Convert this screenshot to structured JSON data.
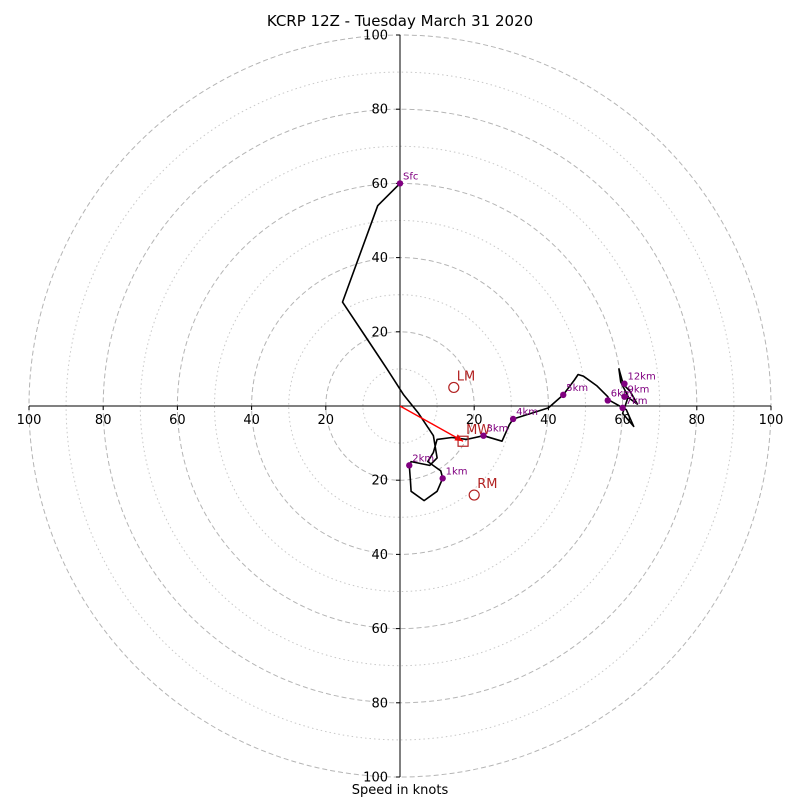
{
  "chart_data": {
    "type": "hodograph",
    "title": "KCRP 12Z - Tuesday March 31 2020",
    "xlabel": "Speed in knots",
    "range": [
      -100,
      100
    ],
    "ring_major": [
      20,
      40,
      60,
      80,
      100
    ],
    "ring_minor": [
      10,
      30,
      50,
      70,
      90
    ],
    "x_tick_labels": [
      {
        "v": -100,
        "label": "100"
      },
      {
        "v": -80,
        "label": "80"
      },
      {
        "v": -60,
        "label": "60"
      },
      {
        "v": -40,
        "label": "40"
      },
      {
        "v": -20,
        "label": "20"
      },
      {
        "v": 20,
        "label": "20"
      },
      {
        "v": 40,
        "label": "40"
      },
      {
        "v": 60,
        "label": "60"
      },
      {
        "v": 80,
        "label": "80"
      },
      {
        "v": 100,
        "label": "100"
      }
    ],
    "y_tick_labels": [
      {
        "v": 100,
        "label": "100"
      },
      {
        "v": 80,
        "label": "80"
      },
      {
        "v": 60,
        "label": "60"
      },
      {
        "v": 40,
        "label": "40"
      },
      {
        "v": 20,
        "label": "20"
      },
      {
        "v": -20,
        "label": "20"
      },
      {
        "v": -40,
        "label": "40"
      },
      {
        "v": -60,
        "label": "60"
      },
      {
        "v": -80,
        "label": "80"
      },
      {
        "v": -100,
        "label": "100"
      }
    ],
    "line_color": "#000000",
    "hodograph_line": [
      [
        0,
        60
      ],
      [
        -6,
        54
      ],
      [
        -15.5,
        28
      ],
      [
        -9.5,
        19
      ],
      [
        -3.5,
        10
      ],
      [
        1,
        3
      ],
      [
        5,
        -2
      ],
      [
        9,
        -8
      ],
      [
        10,
        -14
      ],
      [
        8,
        -16
      ],
      [
        3,
        -15
      ],
      [
        2.5,
        -16
      ],
      [
        2.8,
        -20
      ],
      [
        3,
        -23
      ],
      [
        6.5,
        -25.5
      ],
      [
        10,
        -23
      ],
      [
        11.5,
        -19.5
      ],
      [
        11,
        -17.5
      ],
      [
        7.5,
        -15
      ],
      [
        9,
        -12.5
      ],
      [
        10,
        -9
      ],
      [
        14,
        -8.5
      ],
      [
        18,
        -9
      ],
      [
        22.5,
        -8
      ],
      [
        27.5,
        -9.5
      ],
      [
        29.5,
        -5
      ],
      [
        30.5,
        -3.5
      ],
      [
        40,
        -0.5
      ],
      [
        44,
        3
      ],
      [
        47,
        7
      ],
      [
        48,
        8.5
      ],
      [
        49.5,
        8
      ],
      [
        53,
        5.5
      ],
      [
        56,
        2.5
      ],
      [
        56.5,
        1.5
      ],
      [
        61,
        -1
      ],
      [
        63,
        -5.5
      ],
      [
        60,
        -2
      ],
      [
        60.5,
        -0.5
      ],
      [
        61.5,
        2.5
      ],
      [
        59.5,
        6.5
      ],
      [
        59,
        10
      ],
      [
        60,
        6.5
      ],
      [
        60.5,
        5.5
      ],
      [
        62,
        4
      ],
      [
        64,
        0.5
      ],
      [
        60.5,
        3
      ]
    ],
    "height_color": "#800080",
    "height_points": [
      {
        "label": "Sfc",
        "u": 0,
        "v": 60
      },
      {
        "label": "1km",
        "u": 11.5,
        "v": -19.5
      },
      {
        "label": "2km",
        "u": 2.5,
        "v": -16
      },
      {
        "label": "3km",
        "u": 22.5,
        "v": -8
      },
      {
        "label": "4km",
        "u": 30.5,
        "v": -3.5
      },
      {
        "label": "5km",
        "u": 44,
        "v": 3
      },
      {
        "label": "6km",
        "u": 56,
        "v": 1.5
      },
      {
        "label": "7km",
        "u": 60,
        "v": -0.5
      },
      {
        "label": "9km",
        "u": 60.5,
        "v": 2.5
      },
      {
        "label": "12km",
        "u": 60.5,
        "v": 6
      }
    ],
    "motion_color": "#b22222",
    "storm_motions": [
      {
        "label": "LM",
        "u": 14.5,
        "v": 5,
        "marker": "circle"
      },
      {
        "label": "RM",
        "u": 20,
        "v": -24,
        "marker": "circle"
      },
      {
        "label": "MW",
        "u": 17,
        "v": -9.5,
        "marker": "square"
      }
    ],
    "shear_arrow": {
      "from": [
        0,
        0
      ],
      "to": [
        17,
        -9.5
      ],
      "color": "#ff0000"
    }
  }
}
